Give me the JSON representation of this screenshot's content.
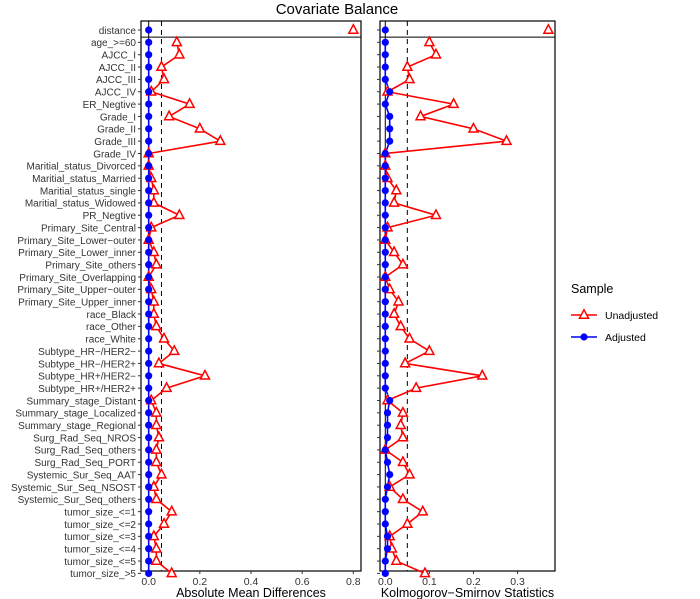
{
  "chart_data": {
    "type": "scatter",
    "title": "Covariate Balance",
    "covariates": [
      "distance",
      "age_>=60",
      "AJCC_I",
      "AJCC_II",
      "AJCC_III",
      "AJCC_IV",
      "ER_Negtive",
      "Grade_I",
      "Grade_II",
      "Grade_III",
      "Grade_IV",
      "Maritial_status_Divorced",
      "Maritial_status_Married",
      "Maritial_status_single",
      "Maritial_status_Widowed",
      "PR_Negtive",
      "Primary_Site_Central",
      "Primary_Site_Lower−outer",
      "Primary_Site_Lower_inner",
      "Primary_Site_others",
      "Primary_Site_Overlapping",
      "Primary_Site_Upper−outer",
      "Primary_Site_Upper_inner",
      "race_Black",
      "race_Other",
      "race_White",
      "Subtype_HR−/HER2−",
      "Subtype_HR−/HER2+",
      "Subtype_HR+/HER2−",
      "Subtype_HR+/HER2+",
      "Summary_stage_Distant",
      "Summary_stage_Localized",
      "Summary_stage_Regional",
      "Surg_Rad_Seq_NROS",
      "Surg_Rad_Seq_others",
      "Surg_Rad_Seq_PORT",
      "Systemic_Sur_Seq_AAT",
      "Systemic_Sur_Seq_NSOST",
      "Systemic_Sur_Seq_others",
      "tumor_size_<=1",
      "tumor_size_<=2",
      "tumor_size_<=3",
      "tumor_size_<=4",
      "tumor_size_<=5",
      "tumor_size_>5"
    ],
    "panels": [
      {
        "xlabel": "Absolute Mean Differences",
        "xlim": [
          -0.03,
          0.83
        ],
        "xticks": [
          0.0,
          0.2,
          0.4,
          0.6,
          0.8
        ],
        "xtick_labels": [
          "0.0",
          "0.2",
          "0.4",
          "0.6",
          "0.8"
        ],
        "threshold": 0.05,
        "series": [
          {
            "name": "Unadjusted",
            "values": [
              0.8,
              0.11,
              0.12,
              0.05,
              0.06,
              0.01,
              0.16,
              0.08,
              0.2,
              0.28,
              0.0,
              0.0,
              0.01,
              0.02,
              0.02,
              0.12,
              0.01,
              0.0,
              0.02,
              0.03,
              0.0,
              0.01,
              0.02,
              0.02,
              0.03,
              0.06,
              0.1,
              0.04,
              0.22,
              0.07,
              0.01,
              0.03,
              0.03,
              0.04,
              0.03,
              0.03,
              0.05,
              0.02,
              0.03,
              0.09,
              0.06,
              0.02,
              0.03,
              0.03,
              0.09
            ]
          },
          {
            "name": "Adjusted",
            "values": [
              0.0,
              0.0,
              0.0,
              0.0,
              0.0,
              0.0,
              0.0,
              0.0,
              0.0,
              0.0,
              0.0,
              0.0,
              0.0,
              0.0,
              0.0,
              0.0,
              0.0,
              0.0,
              0.0,
              0.0,
              0.0,
              0.0,
              0.0,
              0.0,
              0.0,
              0.0,
              0.0,
              0.0,
              0.0,
              0.0,
              0.0,
              0.0,
              0.0,
              0.0,
              0.0,
              0.0,
              0.0,
              0.0,
              0.0,
              0.0,
              0.0,
              0.0,
              0.0,
              0.0,
              0.0
            ]
          }
        ]
      },
      {
        "xlabel": "Kolmogorov−Smirnov Statistics",
        "xlim": [
          -0.012,
          0.385
        ],
        "xticks": [
          0.0,
          0.1,
          0.2,
          0.3
        ],
        "xtick_labels": [
          "0.0",
          "0.1",
          "0.2",
          "0.3"
        ],
        "threshold": 0.05,
        "series": [
          {
            "name": "Unadjusted",
            "values": [
              0.37,
              0.1,
              0.115,
              0.05,
              0.055,
              0.005,
              0.155,
              0.08,
              0.2,
              0.275,
              0.0,
              0.0,
              0.005,
              0.025,
              0.02,
              0.115,
              0.005,
              0.0,
              0.02,
              0.04,
              0.0,
              0.01,
              0.03,
              0.02,
              0.035,
              0.055,
              0.1,
              0.045,
              0.22,
              0.07,
              0.005,
              0.04,
              0.035,
              0.04,
              0.0,
              0.04,
              0.055,
              0.01,
              0.04,
              0.085,
              0.05,
              0.01,
              0.015,
              0.025,
              0.09
            ]
          },
          {
            "name": "Adjusted",
            "values": [
              0.0,
              0.0,
              0.0,
              0.0,
              0.0,
              0.01,
              0.0,
              0.01,
              0.01,
              0.01,
              0.0,
              0.0,
              0.0,
              0.0,
              0.0,
              0.0,
              0.0,
              0.0,
              0.0,
              0.0,
              0.0,
              0.0,
              0.0,
              0.0,
              0.0,
              0.0,
              0.0,
              0.0,
              0.0,
              0.0,
              0.01,
              0.005,
              0.005,
              0.005,
              0.0,
              0.005,
              0.01,
              0.005,
              0.0,
              0.0,
              0.0,
              0.005,
              0.005,
              0.0,
              0.0
            ]
          }
        ]
      }
    ],
    "legend": {
      "title": "Sample",
      "position": "right",
      "entries": [
        {
          "name": "Unadjusted",
          "color": "#ff0000",
          "marker": "triangle-open"
        },
        {
          "name": "Adjusted",
          "color": "#0000ff",
          "marker": "circle-filled"
        }
      ]
    },
    "grid": false
  }
}
